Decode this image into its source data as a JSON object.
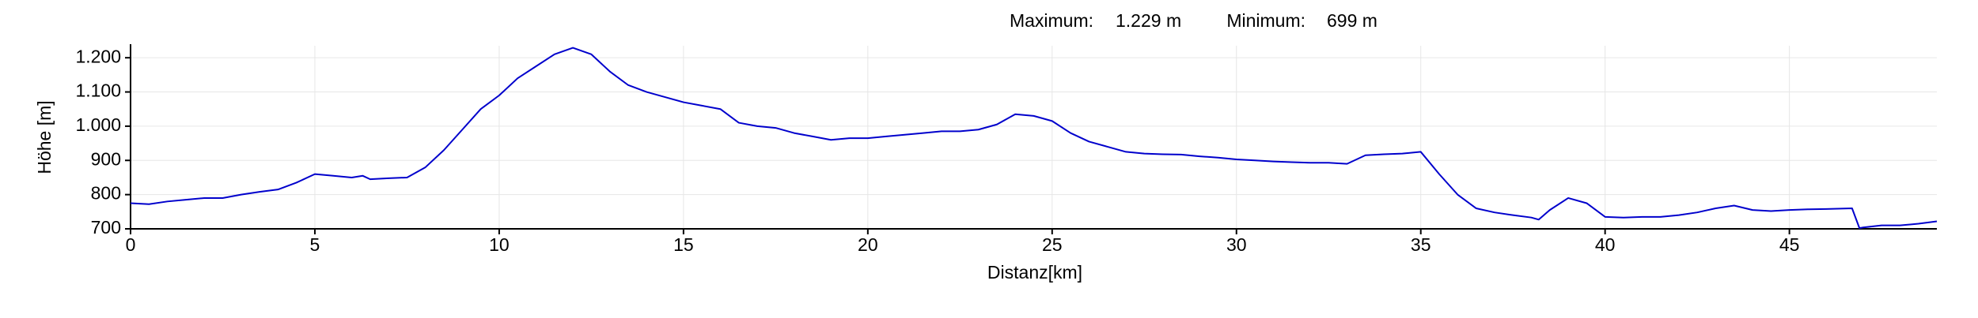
{
  "chart_data": {
    "type": "line",
    "stats": [
      {
        "label": "Maximum:",
        "value": "1.229 m"
      },
      {
        "label": "Minimum:",
        "value": "699 m"
      }
    ],
    "x_label": "Distanz[km]",
    "y_label": "Höhe [m]",
    "x": [
      0,
      0.5,
      1,
      1.5,
      2,
      2.5,
      3,
      3.5,
      4,
      4.5,
      5,
      5.5,
      6,
      6.3,
      6.5,
      7,
      7.5,
      8,
      8.5,
      9,
      9.5,
      10,
      10.5,
      11,
      11.5,
      12,
      12.5,
      13,
      13.5,
      14,
      14.5,
      15,
      15.5,
      16,
      16.5,
      17,
      17.5,
      18,
      18.5,
      19,
      19.5,
      20,
      20.5,
      21,
      21.5,
      22,
      22.5,
      23,
      23.5,
      24,
      24.5,
      25,
      25.5,
      26,
      26.5,
      27,
      27.5,
      28,
      28.5,
      29,
      29.5,
      30,
      30.5,
      31,
      31.5,
      32,
      32.5,
      33,
      33.5,
      34,
      34.5,
      35,
      35.5,
      36,
      36.5,
      37,
      37.5,
      38,
      38.2,
      38.5,
      39,
      39.5,
      40,
      40.5,
      41,
      41.5,
      42,
      42.5,
      43,
      43.5,
      44,
      44.5,
      45,
      45.5,
      46,
      46.7,
      46.9,
      47,
      47.5,
      48,
      48.5,
      49
    ],
    "values": [
      775,
      772,
      780,
      785,
      790,
      790,
      800,
      808,
      815,
      835,
      860,
      855,
      850,
      855,
      845,
      848,
      850,
      880,
      930,
      990,
      1050,
      1090,
      1140,
      1175,
      1210,
      1229,
      1210,
      1160,
      1120,
      1100,
      1085,
      1070,
      1060,
      1050,
      1010,
      1000,
      995,
      980,
      970,
      960,
      965,
      965,
      970,
      975,
      980,
      985,
      985,
      990,
      1005,
      1035,
      1030,
      1015,
      980,
      955,
      940,
      925,
      920,
      918,
      917,
      912,
      908,
      903,
      900,
      897,
      895,
      893,
      893,
      890,
      915,
      918,
      920,
      925,
      860,
      800,
      760,
      748,
      740,
      733,
      727,
      755,
      790,
      775,
      735,
      733,
      735,
      735,
      740,
      748,
      760,
      768,
      755,
      752,
      755,
      757,
      758,
      760,
      702,
      704,
      710,
      710,
      715,
      722
    ],
    "color": "#0000cc",
    "xlim": [
      0,
      49
    ],
    "ylim": [
      700,
      1235
    ],
    "xticks": [
      0,
      5,
      10,
      15,
      20,
      25,
      30,
      35,
      40,
      45
    ],
    "yticks": [
      700,
      800,
      900,
      {
        "value": 1000,
        "label": "1.000"
      },
      {
        "value": 1100,
        "label": "1.100"
      },
      {
        "value": 1200,
        "label": "1.200"
      }
    ],
    "grid": true
  }
}
